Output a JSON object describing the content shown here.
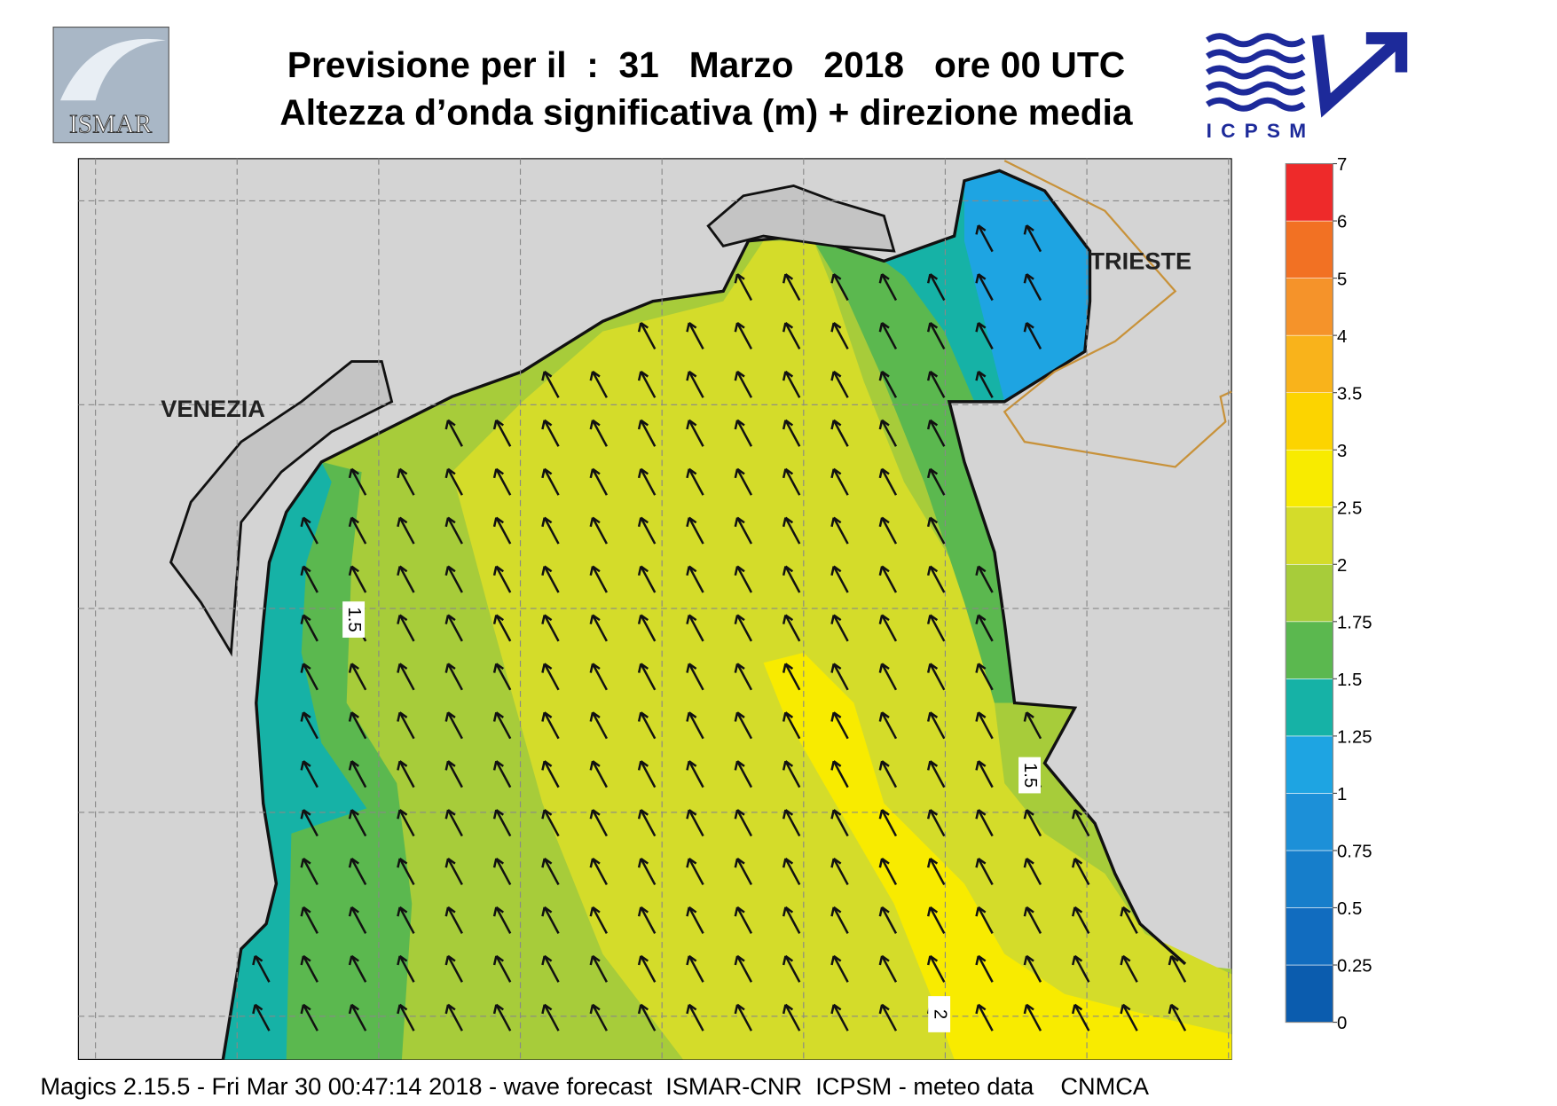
{
  "header": {
    "line1": "Previsione per il  :  31   Marzo   2018   ore 00 UTC",
    "line2": "Altezza d’onda significativa (m) + direzione media"
  },
  "logos": {
    "left": "ISMAR",
    "right": "ICPSM"
  },
  "map": {
    "places": [
      "VENEZIA",
      "TRIESTE"
    ],
    "contour_labels": [
      "1.5",
      "1.5",
      "2"
    ]
  },
  "legend": {
    "levels": [
      0,
      0.25,
      0.5,
      0.75,
      1,
      1.25,
      1.5,
      1.75,
      2,
      2.5,
      3,
      3.5,
      4,
      5,
      6,
      7
    ],
    "colors": [
      "#0b5cae",
      "#116cbf",
      "#167ecb",
      "#1c90d8",
      "#1ea4e2",
      "#16b2a6",
      "#5bb84f",
      "#a7cc3a",
      "#d4dc2a",
      "#f8eb00",
      "#fcd400",
      "#f9b31b",
      "#f5932a",
      "#f27123",
      "#ee2a2a",
      "#ee175c"
    ]
  },
  "footer": "Magics 2.15.5 - Fri Mar 30 00:47:14 2018 - wave forecast  ISMAR-CNR  ICPSM - meteo data    CNMCA"
}
